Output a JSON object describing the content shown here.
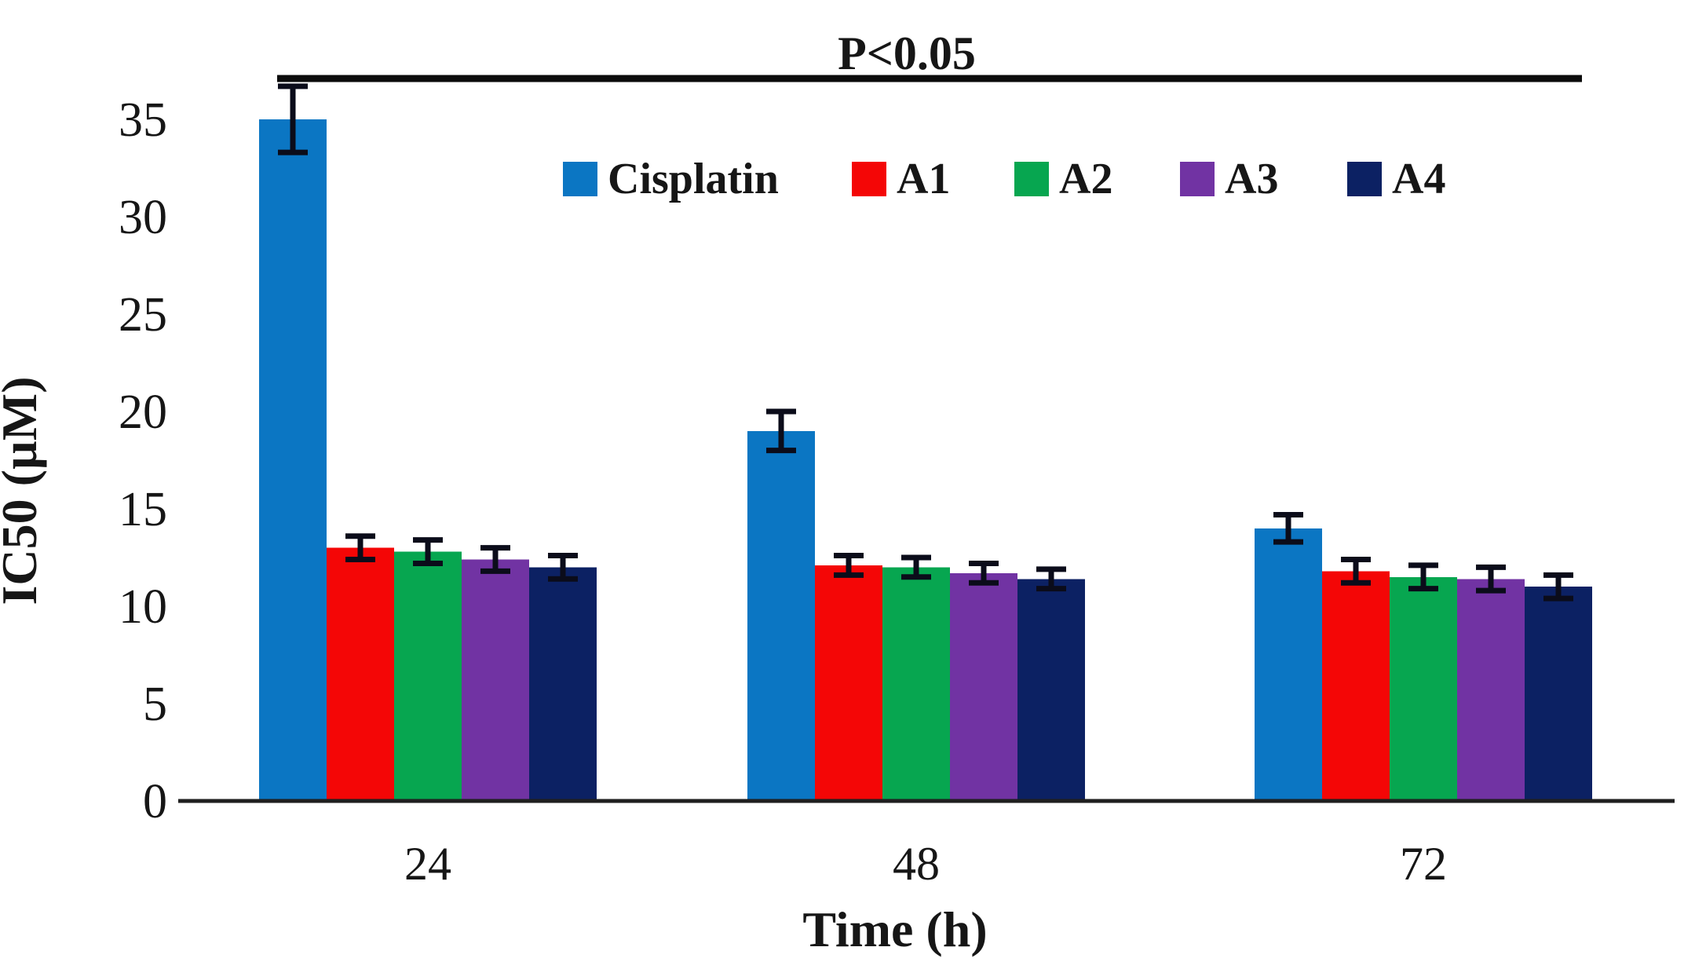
{
  "chart_data": {
    "type": "bar",
    "title": "P<0.05",
    "xlabel": "Time (h)",
    "ylabel": "IC50 (µM)",
    "categories": [
      "24",
      "48",
      "72"
    ],
    "series": [
      {
        "name": "Cisplatin",
        "color": "#0b76c3",
        "values": [
          35,
          19,
          14
        ],
        "errors": [
          1.7,
          1.0,
          0.7
        ]
      },
      {
        "name": "A1",
        "color": "#f40606",
        "values": [
          13,
          12.1,
          11.8
        ],
        "errors": [
          0.6,
          0.5,
          0.6
        ]
      },
      {
        "name": "A2",
        "color": "#07a650",
        "values": [
          12.8,
          12.0,
          11.5
        ],
        "errors": [
          0.6,
          0.5,
          0.6
        ]
      },
      {
        "name": "A3",
        "color": "#7133a3",
        "values": [
          12.4,
          11.7,
          11.4
        ],
        "errors": [
          0.6,
          0.5,
          0.6
        ]
      },
      {
        "name": "A4",
        "color": "#0c2163",
        "values": [
          12.0,
          11.4,
          11.0
        ],
        "errors": [
          0.6,
          0.5,
          0.6
        ]
      }
    ],
    "ylim": [
      0,
      35
    ],
    "ytick_step": 5,
    "grid": false,
    "legend_position": "top-center",
    "error_bars": true,
    "annotation": "P<0.05 significance bracket spanning all groups"
  },
  "style": {
    "text_color": "#161616",
    "axis_line_color": "#1f1f1f",
    "error_bar_color": "#0b0c1a",
    "background": "#ffffff"
  }
}
